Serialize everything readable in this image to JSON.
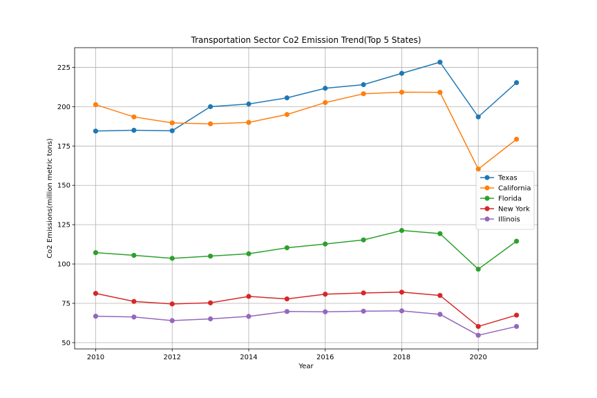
{
  "chart_data": {
    "type": "line",
    "title": "Transportation Sector Co2 Emission Trend(Top 5 States)",
    "xlabel": "Year",
    "ylabel": "Co2 Emissions(million metric tons)",
    "x": [
      2010,
      2011,
      2012,
      2013,
      2014,
      2015,
      2016,
      2017,
      2018,
      2019,
      2020,
      2021
    ],
    "xticks": [
      2010,
      2012,
      2014,
      2016,
      2018,
      2020
    ],
    "yticks": [
      50,
      75,
      100,
      125,
      150,
      175,
      200,
      225
    ],
    "xlim": [
      2009.45,
      2021.55
    ],
    "ylim": [
      46,
      237.5
    ],
    "grid": true,
    "legend_position": "center-right",
    "series": [
      {
        "name": "Texas",
        "color": "#1f77b4",
        "values": [
          184.5,
          185,
          184.7,
          200,
          201.7,
          205.6,
          211.7,
          214,
          221.2,
          228.3,
          193.5,
          215.3
        ]
      },
      {
        "name": "California",
        "color": "#ff7f0e",
        "values": [
          201.3,
          193.5,
          189.7,
          189.1,
          190,
          195,
          202.6,
          208.2,
          209.2,
          209.1,
          160.3,
          179.3
        ]
      },
      {
        "name": "Florida",
        "color": "#2ca02c",
        "values": [
          107.2,
          105.5,
          103.6,
          105,
          106.5,
          110.3,
          112.7,
          115.3,
          121.3,
          119.3,
          96.7,
          114.5
        ]
      },
      {
        "name": "New York",
        "color": "#d62728",
        "values": [
          81.3,
          76.2,
          74.6,
          75.3,
          79.4,
          77.8,
          80.8,
          81.6,
          82.1,
          80,
          60.3,
          67.5
        ]
      },
      {
        "name": "Illinois",
        "color": "#9467bd",
        "values": [
          66.8,
          66.3,
          64,
          65.1,
          66.7,
          69.8,
          69.6,
          70,
          70.2,
          68,
          54.7,
          60.3
        ]
      }
    ]
  }
}
